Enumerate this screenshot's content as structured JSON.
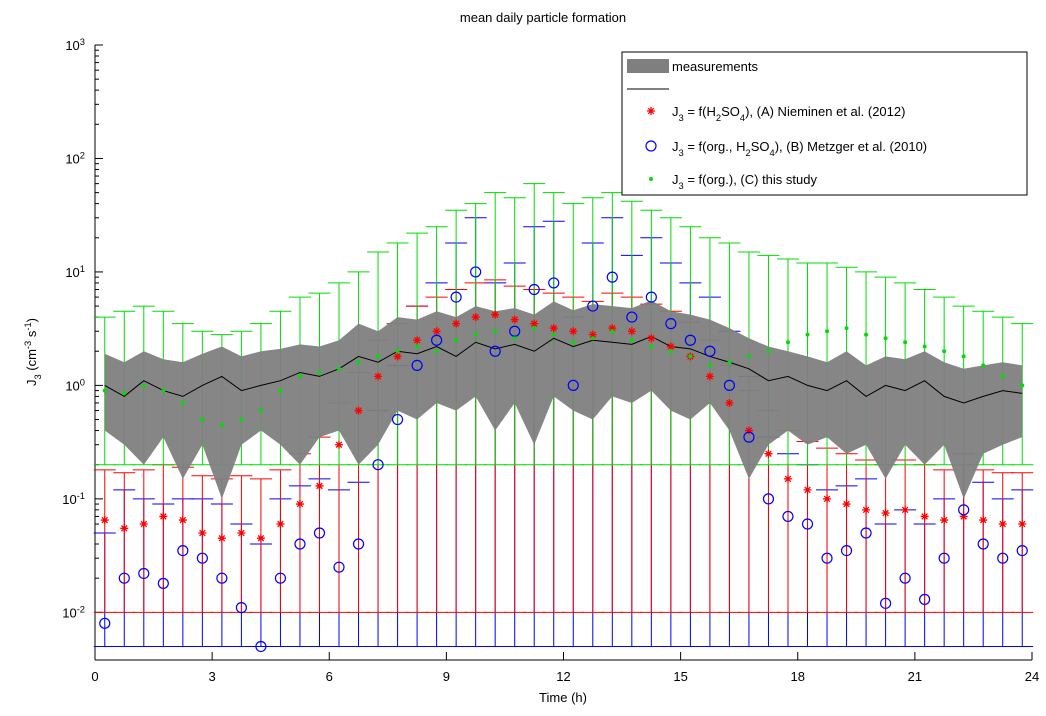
{
  "chart_data": {
    "type": "log_errorbar",
    "title": "mean daily particle formation",
    "xlabel": "Time (h)",
    "ylabel": "J3 (cm-3 s-1)",
    "xlim": [
      0,
      24
    ],
    "xticks": [
      0,
      3,
      6,
      9,
      12,
      15,
      18,
      21,
      24
    ],
    "ylim": [
      0.0038,
      1000
    ],
    "log_y": true,
    "yticks": [
      {
        "value": 0.01,
        "label": "10",
        "exponent": "-2"
      },
      {
        "value": 0.1,
        "label": "10",
        "exponent": "-1"
      },
      {
        "value": 1,
        "label": "10",
        "exponent": "0"
      },
      {
        "value": 10,
        "label": "10",
        "exponent": "1"
      },
      {
        "value": 100,
        "label": "10",
        "exponent": "2"
      },
      {
        "value": 1000,
        "label": "10",
        "exponent": "3"
      }
    ],
    "legend": "upper right",
    "x": [
      0.25,
      0.75,
      1.25,
      1.75,
      2.25,
      2.75,
      3.25,
      3.75,
      4.25,
      4.75,
      5.25,
      5.75,
      6.25,
      6.75,
      7.25,
      7.75,
      8.25,
      8.75,
      9.25,
      9.75,
      10.25,
      10.75,
      11.25,
      11.75,
      12.25,
      12.75,
      13.25,
      13.75,
      14.25,
      14.75,
      15.25,
      15.75,
      16.25,
      16.75,
      17.25,
      17.75,
      18.25,
      18.75,
      19.25,
      19.75,
      20.25,
      20.75,
      21.25,
      21.75,
      22.25,
      22.75,
      23.25,
      23.75
    ],
    "band": {
      "name": "measurements",
      "color": "#7f7f7f",
      "low": [
        0.4,
        0.3,
        0.2,
        0.35,
        0.15,
        0.3,
        0.1,
        0.3,
        0.4,
        0.3,
        0.2,
        0.35,
        0.4,
        0.2,
        0.3,
        0.6,
        0.5,
        0.7,
        0.6,
        0.8,
        0.4,
        0.7,
        0.3,
        0.8,
        0.6,
        0.5,
        0.8,
        0.7,
        0.9,
        0.6,
        0.5,
        0.7,
        0.4,
        0.15,
        0.3,
        0.4,
        0.3,
        0.35,
        0.25,
        0.3,
        0.15,
        0.3,
        0.2,
        0.3,
        0.1,
        0.25,
        0.3,
        0.35
      ],
      "high": [
        1.9,
        1.6,
        2.0,
        1.7,
        1.6,
        1.9,
        2.2,
        1.8,
        2.0,
        2.1,
        2.3,
        2.2,
        2.5,
        3.5,
        3.0,
        4.0,
        3.8,
        4.5,
        4.0,
        5.0,
        4.5,
        4.8,
        4.2,
        5.5,
        4.6,
        5.2,
        5.0,
        4.8,
        5.6,
        4.5,
        4.2,
        3.8,
        3.2,
        2.6,
        2.2,
        2.0,
        1.8,
        1.6,
        2.0,
        1.5,
        1.8,
        1.7,
        2.0,
        1.6,
        1.4,
        1.5,
        1.6,
        1.5
      ]
    },
    "mean": {
      "color": "#000000",
      "values": [
        1.0,
        0.8,
        1.1,
        0.9,
        0.8,
        1.0,
        1.2,
        0.9,
        1.0,
        1.1,
        1.3,
        1.2,
        1.4,
        1.8,
        1.6,
        2.0,
        1.9,
        2.2,
        1.8,
        2.4,
        2.1,
        2.3,
        2.0,
        2.6,
        2.2,
        2.5,
        2.4,
        2.3,
        2.7,
        2.2,
        2.1,
        1.8,
        1.6,
        1.4,
        1.1,
        1.2,
        1.0,
        0.9,
        1.1,
        0.8,
        1.0,
        0.9,
        1.1,
        0.8,
        0.7,
        0.8,
        0.9,
        0.85
      ]
    },
    "series": [
      {
        "name": "J3 = f(H2SO4), (A) Nieminen et al. (2012)",
        "color": "#ff0000",
        "marker": "asterisk",
        "error_low": 0.01,
        "values": [
          0.065,
          0.055,
          0.06,
          0.07,
          0.065,
          0.05,
          0.045,
          0.05,
          0.045,
          0.06,
          0.09,
          0.13,
          0.3,
          0.6,
          1.2,
          1.8,
          2.5,
          3.0,
          3.5,
          4.0,
          4.2,
          3.8,
          3.5,
          3.2,
          3.0,
          2.8,
          3.2,
          3.0,
          2.6,
          2.2,
          1.8,
          1.2,
          0.7,
          0.4,
          0.25,
          0.15,
          0.12,
          0.1,
          0.09,
          0.08,
          0.075,
          0.08,
          0.07,
          0.065,
          0.07,
          0.065,
          0.06,
          0.06
        ],
        "upper": [
          0.18,
          0.17,
          0.18,
          0.2,
          0.19,
          0.16,
          0.15,
          0.16,
          0.15,
          0.18,
          0.25,
          0.35,
          0.7,
          1.3,
          2.5,
          3.5,
          5,
          6,
          7,
          8,
          8.5,
          7.5,
          7,
          6.5,
          6,
          5.5,
          6.5,
          6,
          5.2,
          4.5,
          3.6,
          2.5,
          1.5,
          0.9,
          0.6,
          0.4,
          0.32,
          0.28,
          0.25,
          0.22,
          0.2,
          0.22,
          0.2,
          0.18,
          0.2,
          0.18,
          0.17,
          0.17
        ]
      },
      {
        "name": "J3 = f(org., H2SO4), (B) Metzger et al. (2010)",
        "color": "#0000ff",
        "marker": "circle",
        "error_low": 0.005,
        "values": [
          0.008,
          0.02,
          0.022,
          0.018,
          0.035,
          0.03,
          0.02,
          0.011,
          0.005,
          0.02,
          0.04,
          0.05,
          0.025,
          0.04,
          0.2,
          0.5,
          1.5,
          2.5,
          6,
          10,
          2.0,
          3.0,
          7,
          8,
          1.0,
          5,
          9,
          4,
          6,
          3.5,
          2.5,
          2.0,
          1.0,
          0.35,
          0.1,
          0.07,
          0.06,
          0.03,
          0.035,
          0.05,
          0.012,
          0.02,
          0.013,
          0.03,
          0.08,
          0.04,
          0.03,
          0.035
        ],
        "upper": [
          0.05,
          0.12,
          0.1,
          0.09,
          0.1,
          0.1,
          0.09,
          0.06,
          0.04,
          0.1,
          0.13,
          0.15,
          0.12,
          0.14,
          0.6,
          1.5,
          5,
          8,
          18,
          30,
          8,
          12,
          25,
          28,
          4,
          18,
          30,
          14,
          20,
          12,
          8,
          6,
          3,
          1.2,
          0.35,
          0.25,
          0.2,
          0.12,
          0.13,
          0.15,
          0.06,
          0.08,
          0.06,
          0.1,
          0.25,
          0.14,
          0.1,
          0.12
        ]
      },
      {
        "name": "J3 = f(org.), (C) this study",
        "color": "#00dd00",
        "marker": "dot",
        "error_low": 0.2,
        "values": [
          0.9,
          0.85,
          1.0,
          0.9,
          0.7,
          0.5,
          0.45,
          0.5,
          0.6,
          0.9,
          1.2,
          1.3,
          1.4,
          1.6,
          1.8,
          2.0,
          2.2,
          2.0,
          2.5,
          2.8,
          3.0,
          2.6,
          3.2,
          2.8,
          2.4,
          2.6,
          3.0,
          2.5,
          2.2,
          2.0,
          1.8,
          1.5,
          1.6,
          1.8,
          2.0,
          2.4,
          2.8,
          3.0,
          3.2,
          2.8,
          2.6,
          2.4,
          2.2,
          2.0,
          1.8,
          1.5,
          1.2,
          1.0
        ],
        "upper": [
          4,
          4.5,
          5,
          4.5,
          3.5,
          3,
          2.8,
          3,
          3.5,
          4.5,
          6,
          6.5,
          8,
          10,
          15,
          18,
          22,
          25,
          35,
          40,
          50,
          45,
          60,
          50,
          40,
          45,
          50,
          42,
          35,
          30,
          25,
          20,
          18,
          15,
          14,
          13,
          12,
          12,
          11,
          10,
          9,
          8,
          7,
          6,
          5,
          4.5,
          4,
          3.5
        ]
      }
    ]
  }
}
